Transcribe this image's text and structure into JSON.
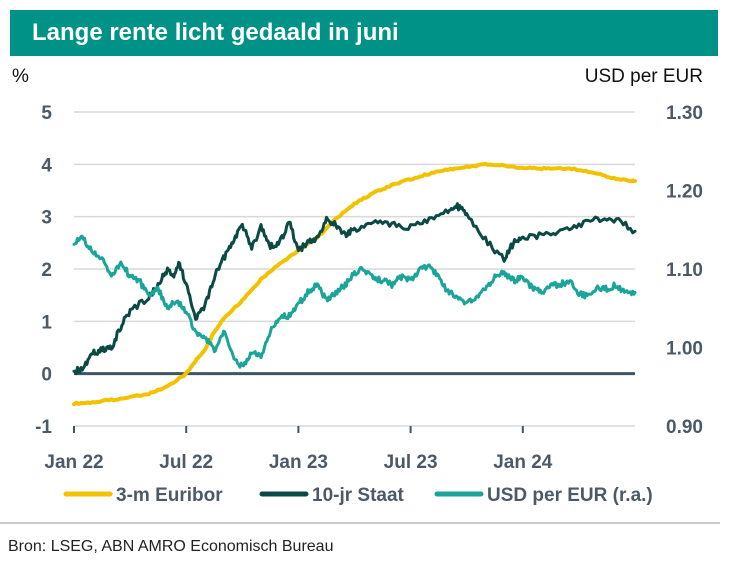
{
  "title": "Lange rente licht gedaald in juni",
  "source": "Bron: LSEG, ABN AMRO Economisch Bureau",
  "colors": {
    "header_bg": "#009286",
    "euribor": "#f2c100",
    "staat": "#0b4a44",
    "usd": "#1aa598",
    "grid": "#d9d9d9",
    "zero_line": "#3f5566"
  },
  "chart_data": {
    "type": "line",
    "title": "Lange rente licht gedaald in juni",
    "ylabel_left": "%",
    "ylabel_right": "USD per EUR",
    "ylim_left": [
      -1,
      5
    ],
    "ylim_right": [
      0.9,
      1.3
    ],
    "yticks_left": [
      "5",
      "4",
      "3",
      "2",
      "1",
      "0",
      "-1"
    ],
    "yticks_right": [
      "1.30",
      "1.20",
      "1.10",
      "1.00",
      "0.90"
    ],
    "x_range_months": [
      0,
      30
    ],
    "xticks": [
      {
        "label": "Jan 22",
        "month": 0
      },
      {
        "label": "Jul 22",
        "month": 6
      },
      {
        "label": "Jan 23",
        "month": 12
      },
      {
        "label": "Jul 23",
        "month": 18
      },
      {
        "label": "Jan 24",
        "month": 24
      }
    ],
    "series": [
      {
        "name": "3-m Euribor",
        "axis": "left",
        "color": "#f2c100",
        "points": [
          [
            0,
            -0.57
          ],
          [
            1,
            -0.55
          ],
          [
            2,
            -0.5
          ],
          [
            3,
            -0.45
          ],
          [
            4,
            -0.38
          ],
          [
            5,
            -0.25
          ],
          [
            6,
            0.0
          ],
          [
            6.5,
            0.25
          ],
          [
            7,
            0.45
          ],
          [
            7.5,
            0.8
          ],
          [
            8,
            1.05
          ],
          [
            9,
            1.4
          ],
          [
            10,
            1.8
          ],
          [
            11,
            2.1
          ],
          [
            12,
            2.35
          ],
          [
            13,
            2.6
          ],
          [
            14,
            2.95
          ],
          [
            15,
            3.25
          ],
          [
            16,
            3.45
          ],
          [
            17,
            3.6
          ],
          [
            18,
            3.72
          ],
          [
            19,
            3.82
          ],
          [
            20,
            3.9
          ],
          [
            21,
            3.95
          ],
          [
            22,
            4.0
          ],
          [
            23,
            3.98
          ],
          [
            24,
            3.93
          ],
          [
            25,
            3.92
          ],
          [
            26,
            3.93
          ],
          [
            27,
            3.9
          ],
          [
            28,
            3.82
          ],
          [
            29,
            3.72
          ],
          [
            30,
            3.68
          ]
        ]
      },
      {
        "name": "10-jr Staat",
        "axis": "left",
        "color": "#0b4a44",
        "points": [
          [
            0,
            0.05
          ],
          [
            0.5,
            0.1
          ],
          [
            1,
            0.4
          ],
          [
            1.5,
            0.45
          ],
          [
            2,
            0.5
          ],
          [
            2.5,
            0.9
          ],
          [
            3,
            1.2
          ],
          [
            4,
            1.45
          ],
          [
            4.5,
            1.7
          ],
          [
            5,
            2.0
          ],
          [
            5.3,
            1.85
          ],
          [
            5.6,
            2.15
          ],
          [
            6,
            1.7
          ],
          [
            6.5,
            1.05
          ],
          [
            7,
            1.3
          ],
          [
            7.5,
            1.85
          ],
          [
            8,
            2.2
          ],
          [
            8.5,
            2.55
          ],
          [
            9,
            2.85
          ],
          [
            9.5,
            2.4
          ],
          [
            10,
            2.8
          ],
          [
            10.5,
            2.45
          ],
          [
            11,
            2.5
          ],
          [
            11.5,
            2.9
          ],
          [
            12,
            2.35
          ],
          [
            12.5,
            2.5
          ],
          [
            13,
            2.6
          ],
          [
            13.5,
            2.95
          ],
          [
            14,
            2.85
          ],
          [
            14.5,
            2.65
          ],
          [
            15,
            2.75
          ],
          [
            16,
            2.9
          ],
          [
            17,
            2.85
          ],
          [
            18,
            2.8
          ],
          [
            19,
            2.95
          ],
          [
            20,
            3.1
          ],
          [
            20.5,
            3.2
          ],
          [
            21,
            3.05
          ],
          [
            22,
            2.55
          ],
          [
            23,
            2.18
          ],
          [
            23.5,
            2.5
          ],
          [
            24,
            2.6
          ],
          [
            25,
            2.65
          ],
          [
            26,
            2.7
          ],
          [
            27,
            2.85
          ],
          [
            28,
            2.95
          ],
          [
            29,
            2.95
          ],
          [
            30,
            2.72
          ]
        ]
      },
      {
        "name": "USD per EUR (r.a.)",
        "axis": "right",
        "color": "#1aa598",
        "points": [
          [
            0,
            1.135
          ],
          [
            0.5,
            1.14
          ],
          [
            1,
            1.12
          ],
          [
            1.5,
            1.115
          ],
          [
            2,
            1.09
          ],
          [
            2.5,
            1.11
          ],
          [
            3,
            1.09
          ],
          [
            3.5,
            1.085
          ],
          [
            4,
            1.065
          ],
          [
            4.5,
            1.075
          ],
          [
            5,
            1.05
          ],
          [
            5.5,
            1.06
          ],
          [
            6,
            1.045
          ],
          [
            6.5,
            1.02
          ],
          [
            7,
            1.015
          ],
          [
            7.5,
            0.995
          ],
          [
            8,
            1.02
          ],
          [
            8.5,
            0.99
          ],
          [
            9,
            0.975
          ],
          [
            9.5,
            0.995
          ],
          [
            10,
            0.99
          ],
          [
            10.5,
            1.02
          ],
          [
            11,
            1.04
          ],
          [
            11.5,
            1.04
          ],
          [
            12,
            1.055
          ],
          [
            12.5,
            1.07
          ],
          [
            13,
            1.08
          ],
          [
            13.5,
            1.06
          ],
          [
            14,
            1.07
          ],
          [
            14.5,
            1.08
          ],
          [
            15,
            1.095
          ],
          [
            15.5,
            1.1
          ],
          [
            16,
            1.09
          ],
          [
            16.5,
            1.085
          ],
          [
            17,
            1.08
          ],
          [
            17.5,
            1.09
          ],
          [
            18,
            1.085
          ],
          [
            18.5,
            1.1
          ],
          [
            19,
            1.105
          ],
          [
            19.5,
            1.09
          ],
          [
            20,
            1.07
          ],
          [
            20.5,
            1.065
          ],
          [
            21,
            1.055
          ],
          [
            21.5,
            1.065
          ],
          [
            22,
            1.075
          ],
          [
            22.5,
            1.09
          ],
          [
            23,
            1.095
          ],
          [
            23.5,
            1.085
          ],
          [
            24,
            1.09
          ],
          [
            24.5,
            1.075
          ],
          [
            25,
            1.07
          ],
          [
            25.5,
            1.08
          ],
          [
            26,
            1.08
          ],
          [
            26.5,
            1.085
          ],
          [
            27,
            1.07
          ],
          [
            27.5,
            1.065
          ],
          [
            28,
            1.075
          ],
          [
            28.5,
            1.075
          ],
          [
            29,
            1.08
          ],
          [
            29.5,
            1.07
          ],
          [
            30,
            1.07
          ]
        ]
      }
    ],
    "legend_position": "bottom"
  }
}
